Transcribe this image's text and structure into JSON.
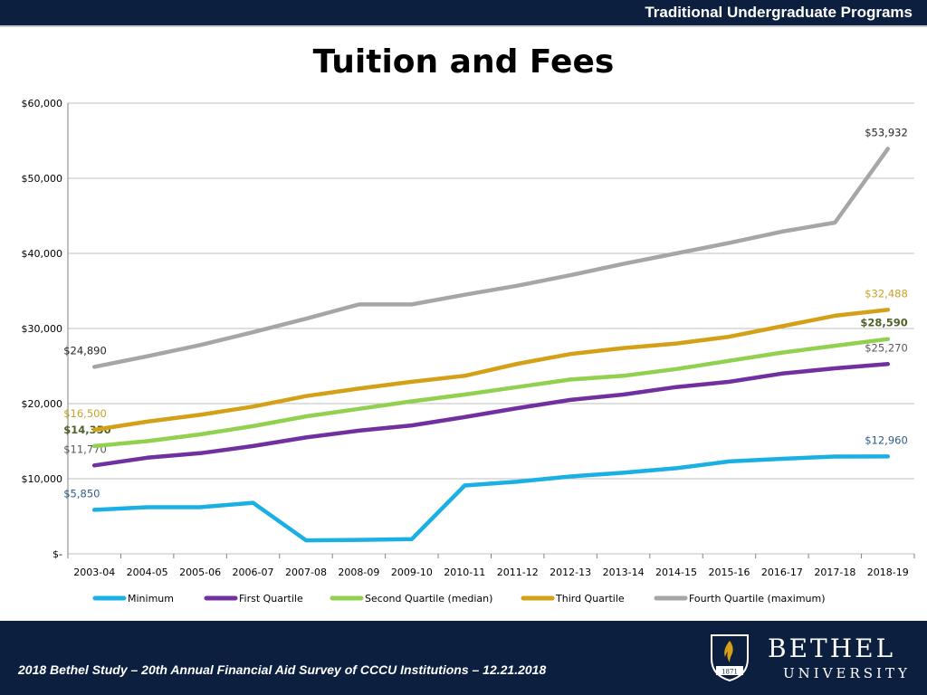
{
  "header": {
    "program": "Traditional Undergraduate Programs"
  },
  "title": "Tuition and Fees",
  "footer": {
    "study": "2018 Bethel Study – 20th Annual Financial Aid Survey of CCCU Institutions – 12.21.2018",
    "logo_name": "BETHEL",
    "logo_sub": "UNIVERSITY",
    "logo_year": "1871"
  },
  "colors": {
    "header_bg": "#0c1f3f",
    "grid": "#bfbfbf"
  },
  "chart_data": {
    "type": "line",
    "title": "Tuition and Fees",
    "xlabel": "",
    "ylabel": "",
    "ylim": [
      0,
      60000
    ],
    "yticks": [
      0,
      10000,
      20000,
      30000,
      40000,
      50000,
      60000
    ],
    "ytick_labels": [
      "$-",
      "$10,000",
      "$20,000",
      "$30,000",
      "$40,000",
      "$50,000",
      "$60,000"
    ],
    "grid": true,
    "legend_position": "bottom",
    "categories": [
      "2003-04",
      "2004-05",
      "2005-06",
      "2006-07",
      "2007-08",
      "2008-09",
      "2009-10",
      "2010-11",
      "2011-12",
      "2012-13",
      "2013-14",
      "2014-15",
      "2015-16",
      "2016-17",
      "2017-18",
      "2018-19"
    ],
    "series": [
      {
        "name": "Minimum",
        "color": "#1ab0e3",
        "values": [
          5850,
          6200,
          6200,
          6800,
          1800,
          1850,
          1950,
          9100,
          9600,
          10300,
          10800,
          11400,
          12300,
          12650,
          12950,
          12960
        ],
        "labels": [
          {
            "index": 0,
            "text": "$5,850",
            "bold": false,
            "color": "#2e5b8c"
          },
          {
            "index": 15,
            "text": "$12,960",
            "bold": false,
            "color": "#2e5b8c"
          }
        ]
      },
      {
        "name": "First Quartile",
        "color": "#7030a0",
        "values": [
          11770,
          12800,
          13400,
          14350,
          15500,
          16400,
          17100,
          18200,
          19400,
          20500,
          21200,
          22200,
          22900,
          24000,
          24700,
          25270
        ],
        "labels": [
          {
            "index": 0,
            "text": "$11,770",
            "bold": false,
            "color": "#595959"
          },
          {
            "index": 15,
            "text": "$25,270",
            "bold": false,
            "color": "#595959"
          }
        ]
      },
      {
        "name": "Second Quartile (median)",
        "color": "#92d050",
        "values": [
          14350,
          15000,
          15900,
          17000,
          18300,
          19300,
          20300,
          21200,
          22200,
          23200,
          23700,
          24600,
          25700,
          26800,
          27700,
          28590
        ],
        "labels": [
          {
            "index": 0,
            "text": "$14,350",
            "bold": true,
            "color": "#4f6228"
          },
          {
            "index": 15,
            "text": "$28,590",
            "bold": true,
            "color": "#4f6228"
          }
        ]
      },
      {
        "name": "Third Quartile",
        "color": "#d4a017",
        "values": [
          16500,
          17600,
          18500,
          19600,
          21000,
          22000,
          22900,
          23700,
          25300,
          26600,
          27400,
          28000,
          28900,
          30300,
          31700,
          32488
        ],
        "labels": [
          {
            "index": 0,
            "text": "$16,500",
            "bold": false,
            "color": "#c9a227"
          },
          {
            "index": 15,
            "text": "$32,488",
            "bold": false,
            "color": "#c9a227"
          }
        ]
      },
      {
        "name": "Fourth Quartile (maximum)",
        "color": "#a6a6a6",
        "values": [
          24890,
          26300,
          27800,
          29500,
          31300,
          33200,
          33200,
          34500,
          35700,
          37100,
          38600,
          40000,
          41400,
          42900,
          44100,
          53932
        ],
        "labels": [
          {
            "index": 0,
            "text": "$24,890",
            "bold": false,
            "color": "#262626"
          },
          {
            "index": 15,
            "text": "$53,932",
            "bold": false,
            "color": "#262626"
          }
        ]
      }
    ]
  }
}
